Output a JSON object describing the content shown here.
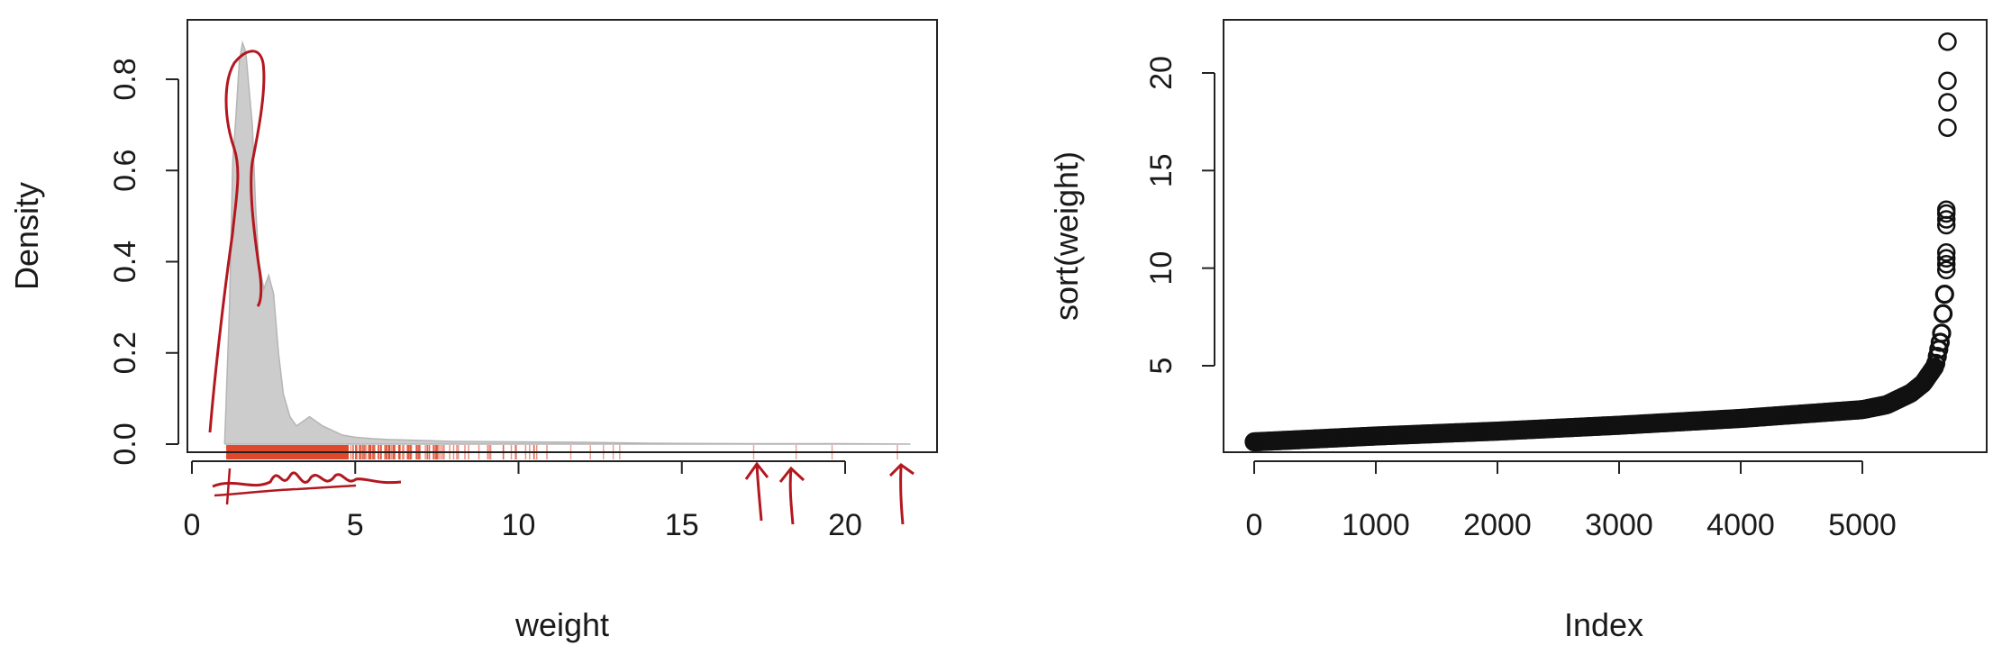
{
  "chart_data": [
    {
      "type": "area",
      "title": "",
      "xlabel": "weight",
      "ylabel": "Density",
      "xlim": [
        0,
        23
      ],
      "ylim": [
        0,
        0.9
      ],
      "xticks": [
        0,
        5,
        10,
        15,
        20
      ],
      "yticks": [
        0.0,
        0.2,
        0.4,
        0.6,
        0.8
      ],
      "xtick_labels": [
        "0",
        "5",
        "10",
        "15",
        "20"
      ],
      "ytick_labels": [
        "0.0",
        "0.2",
        "0.4",
        "0.6",
        "0.8"
      ],
      "grid": false,
      "density": {
        "x": [
          1.0,
          1.15,
          1.25,
          1.35,
          1.45,
          1.55,
          1.65,
          1.75,
          1.85,
          1.95,
          2.05,
          2.2,
          2.35,
          2.5,
          2.65,
          2.8,
          3.0,
          3.2,
          3.4,
          3.6,
          3.8,
          4.0,
          4.3,
          4.6,
          5.0,
          5.5,
          6.0,
          7.0,
          8.0,
          10.0,
          12.0,
          14.0,
          17.0,
          20.0,
          22.0
        ],
        "y": [
          0.0,
          0.3,
          0.62,
          0.72,
          0.84,
          0.88,
          0.86,
          0.78,
          0.7,
          0.52,
          0.4,
          0.34,
          0.37,
          0.33,
          0.2,
          0.11,
          0.06,
          0.04,
          0.05,
          0.06,
          0.05,
          0.04,
          0.03,
          0.02,
          0.015,
          0.012,
          0.01,
          0.008,
          0.006,
          0.005,
          0.004,
          0.002,
          0.001,
          0.001,
          0.0
        ]
      },
      "rug_color": "#e0482c",
      "density_fill": "#cccccc",
      "annotations": [
        "hand-drawn red outline over main peak",
        "hand-drawn red scribble under dense rug",
        "red arrows pointing at outliers near 17.2, 18.5, 21.6"
      ]
    },
    {
      "type": "scatter",
      "title": "",
      "xlabel": "Index",
      "ylabel": "sort(weight)",
      "xlim": [
        -100,
        5800
      ],
      "ylim": [
        0,
        22.5
      ],
      "xticks": [
        0,
        1000,
        2000,
        3000,
        4000,
        5000
      ],
      "yticks": [
        5,
        10,
        15,
        20
      ],
      "xtick_labels": [
        "0",
        "1000",
        "2000",
        "3000",
        "4000",
        "5000"
      ],
      "ytick_labels": [
        "5",
        "10",
        "15",
        "20"
      ],
      "grid": false,
      "marker": "open-circle",
      "n_points": 5700,
      "curve_x": [
        0,
        500,
        1000,
        2000,
        3000,
        4000,
        5000,
        5200,
        5400,
        5500,
        5600,
        5650,
        5680,
        5700
      ],
      "curve_y": [
        1.1,
        1.25,
        1.4,
        1.65,
        1.95,
        2.3,
        2.75,
        3.0,
        3.6,
        4.1,
        5.0,
        6.5,
        9.0,
        13.2
      ],
      "outliers_y": [
        17.2,
        18.5,
        19.6,
        21.6
      ]
    }
  ]
}
